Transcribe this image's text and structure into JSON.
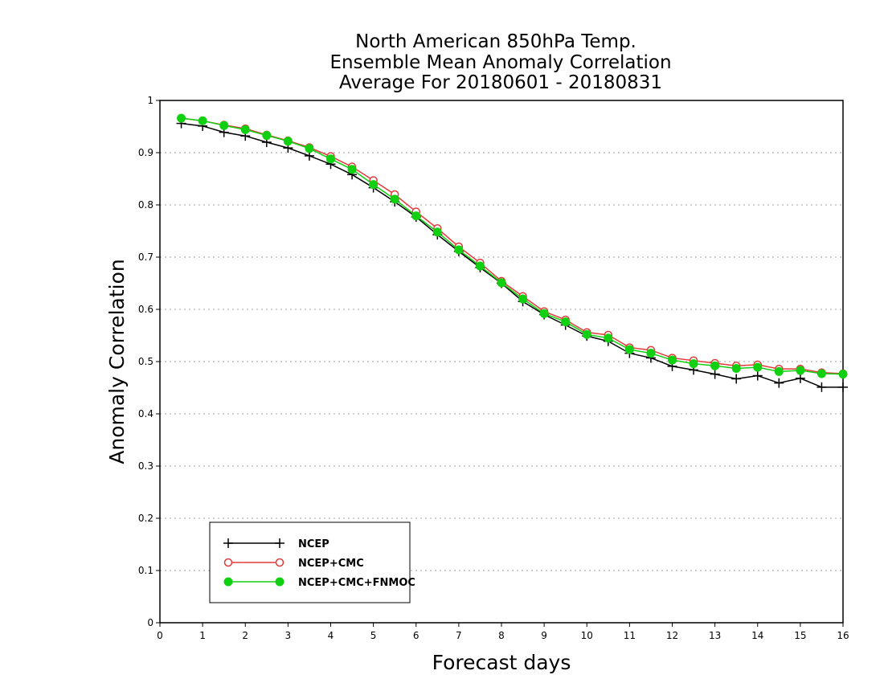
{
  "chart_data": {
    "type": "line",
    "title_lines": [
      "North American 850hPa Temp.",
      "Ensemble Mean Anomaly Correlation",
      "Average For 20180601 - 20180831"
    ],
    "xlabel": "Forecast days",
    "ylabel": "Anomaly Correlation",
    "xlim": [
      0,
      16
    ],
    "ylim": [
      0,
      1
    ],
    "x_ticks": [
      "0",
      "1",
      "2",
      "3",
      "4",
      "5",
      "6",
      "7",
      "8",
      "9",
      "10",
      "11",
      "12",
      "13",
      "14",
      "15",
      "16"
    ],
    "y_ticks": [
      "0",
      "0.1",
      "0.2",
      "0.3",
      "0.4",
      "0.5",
      "0.6",
      "0.7",
      "0.8",
      "0.9",
      "1"
    ],
    "grid": "horizontal dotted",
    "legend_position": "bottom-left",
    "x": [
      0.5,
      1,
      1.5,
      2,
      2.5,
      3,
      3.5,
      4,
      4.5,
      5,
      5.5,
      6,
      6.5,
      7,
      7.5,
      8,
      8.5,
      9,
      9.5,
      10,
      10.5,
      11,
      11.5,
      12,
      12.5,
      13,
      13.5,
      14,
      14.5,
      15,
      15.5,
      16
    ],
    "series": [
      {
        "name": "NCEP",
        "color": "#000000",
        "marker": "plus",
        "values": [
          0.956,
          0.951,
          0.939,
          0.932,
          0.92,
          0.909,
          0.894,
          0.878,
          0.858,
          0.833,
          0.806,
          0.777,
          0.743,
          0.711,
          0.68,
          0.65,
          0.615,
          0.59,
          0.57,
          0.549,
          0.539,
          0.516,
          0.507,
          0.491,
          0.484,
          0.476,
          0.467,
          0.473,
          0.459,
          0.468,
          0.451,
          0.451
        ]
      },
      {
        "name": "NCEP+CMC",
        "color": "#e23b3b",
        "marker": "open-circle",
        "values": [
          0.966,
          0.961,
          0.953,
          0.946,
          0.934,
          0.923,
          0.91,
          0.893,
          0.873,
          0.847,
          0.82,
          0.787,
          0.755,
          0.72,
          0.689,
          0.654,
          0.625,
          0.596,
          0.58,
          0.556,
          0.551,
          0.527,
          0.522,
          0.507,
          0.502,
          0.497,
          0.492,
          0.494,
          0.486,
          0.486,
          0.479,
          0.477
        ]
      },
      {
        "name": "NCEP+CMC+FNMOC",
        "color": "#11d011",
        "marker": "filled-circle",
        "values": [
          0.966,
          0.961,
          0.952,
          0.944,
          0.933,
          0.922,
          0.908,
          0.888,
          0.868,
          0.839,
          0.811,
          0.779,
          0.748,
          0.714,
          0.683,
          0.651,
          0.62,
          0.592,
          0.576,
          0.552,
          0.545,
          0.523,
          0.516,
          0.503,
          0.496,
          0.492,
          0.487,
          0.489,
          0.481,
          0.483,
          0.477,
          0.476
        ]
      }
    ]
  }
}
